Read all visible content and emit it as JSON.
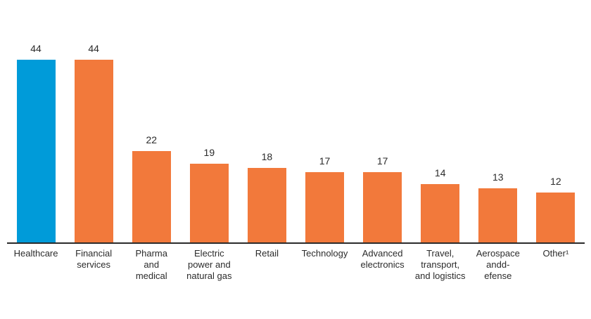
{
  "chart_data": {
    "type": "bar",
    "title": "",
    "xlabel": "",
    "ylabel": "",
    "categories": [
      "Healthcare",
      "Financial\nservices",
      "Pharma\nand\nmedical",
      "Electric\npower and\nnatural gas",
      "Retail",
      "Technology",
      "Advanced\nelectronics",
      "Travel,\ntransport,\nand logistics",
      "Aerospace\nandd-\nefense",
      "Other¹"
    ],
    "values": [
      44,
      44,
      22,
      19,
      18,
      17,
      17,
      14,
      13,
      12
    ],
    "value_labels": [
      "44",
      "44",
      "22",
      "19",
      "18",
      "17",
      "17",
      "14",
      "13",
      "12"
    ],
    "bar_colors": [
      "#009bd9",
      "#f2793b",
      "#f2793b",
      "#f2793b",
      "#f2793b",
      "#f2793b",
      "#f2793b",
      "#f2793b",
      "#f2793b",
      "#f2793b"
    ],
    "ylim": [
      0,
      44
    ],
    "grid": false,
    "legend": "none",
    "value_labels_shown": true,
    "baseline_axis_shown": true
  },
  "colors": {
    "highlight_blue": "#009bd9",
    "bar_orange": "#f2793b",
    "axis_line": "#2b2b2b",
    "text": "#2b2b2b",
    "background": "#ffffff"
  }
}
